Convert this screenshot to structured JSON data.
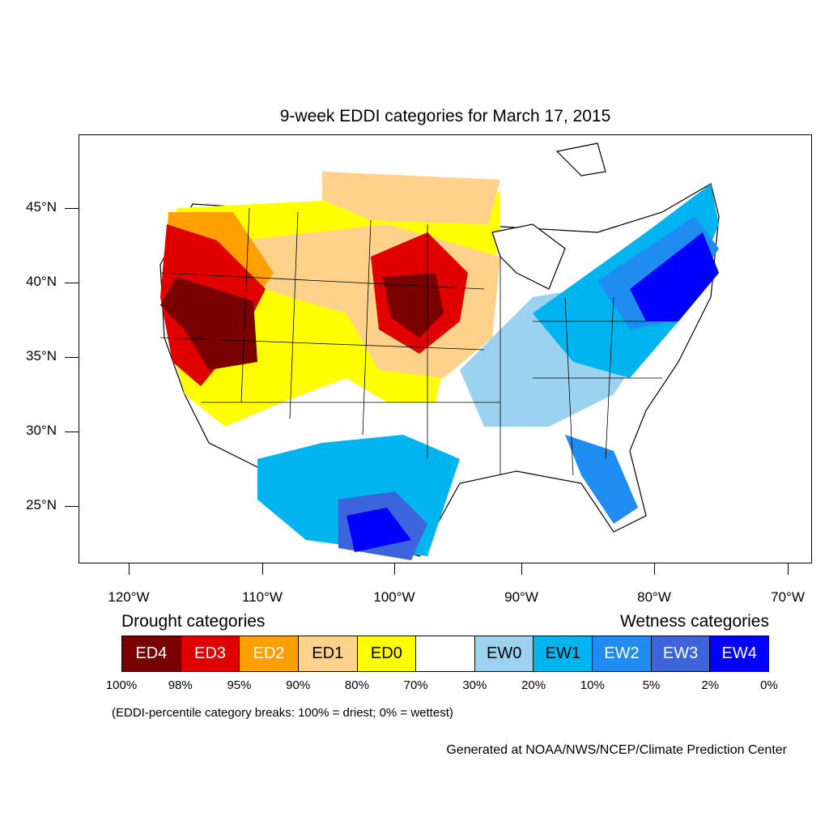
{
  "title": "9-week EDDI categories for March 17, 2015",
  "latitude_labels": [
    "45°N",
    "40°N",
    "35°N",
    "30°N",
    "25°N"
  ],
  "longitude_labels": [
    "120°W",
    "110°W",
    "100°W",
    "90°W",
    "80°W",
    "70°W"
  ],
  "legend": {
    "drought_heading": "Drought categories",
    "wetness_heading": "Wetness categories",
    "categories": [
      {
        "label": "ED4",
        "color": "#7a0000",
        "text_color": "#ffffff"
      },
      {
        "label": "ED3",
        "color": "#e00000",
        "text_color": "#ffffff"
      },
      {
        "label": "ED2",
        "color": "#ffa000",
        "text_color": "#ffffff"
      },
      {
        "label": "ED1",
        "color": "#ffd28c",
        "text_color": "#000000"
      },
      {
        "label": "ED0",
        "color": "#ffff00",
        "text_color": "#000000"
      },
      {
        "label": "",
        "color": "#ffffff",
        "text_color": "#000000"
      },
      {
        "label": "EW0",
        "color": "#9ad2f0",
        "text_color": "#000000"
      },
      {
        "label": "EW1",
        "color": "#00b4f0",
        "text_color": "#000000"
      },
      {
        "label": "EW2",
        "color": "#1e8cf0",
        "text_color": "#ffffff"
      },
      {
        "label": "EW3",
        "color": "#3c64dc",
        "text_color": "#ffffff"
      },
      {
        "label": "EW4",
        "color": "#0000ff",
        "text_color": "#ffffff"
      }
    ],
    "breaks": [
      "100%",
      "98%",
      "95%",
      "90%",
      "80%",
      "70%",
      "30%",
      "20%",
      "10%",
      "5%",
      "2%",
      "0%"
    ],
    "note": "(EDDI-percentile category breaks: 100% = driest; 0% = wettest)"
  },
  "credit": "Generated at NOAA/NWS/NCEP/Climate Prediction Center"
}
